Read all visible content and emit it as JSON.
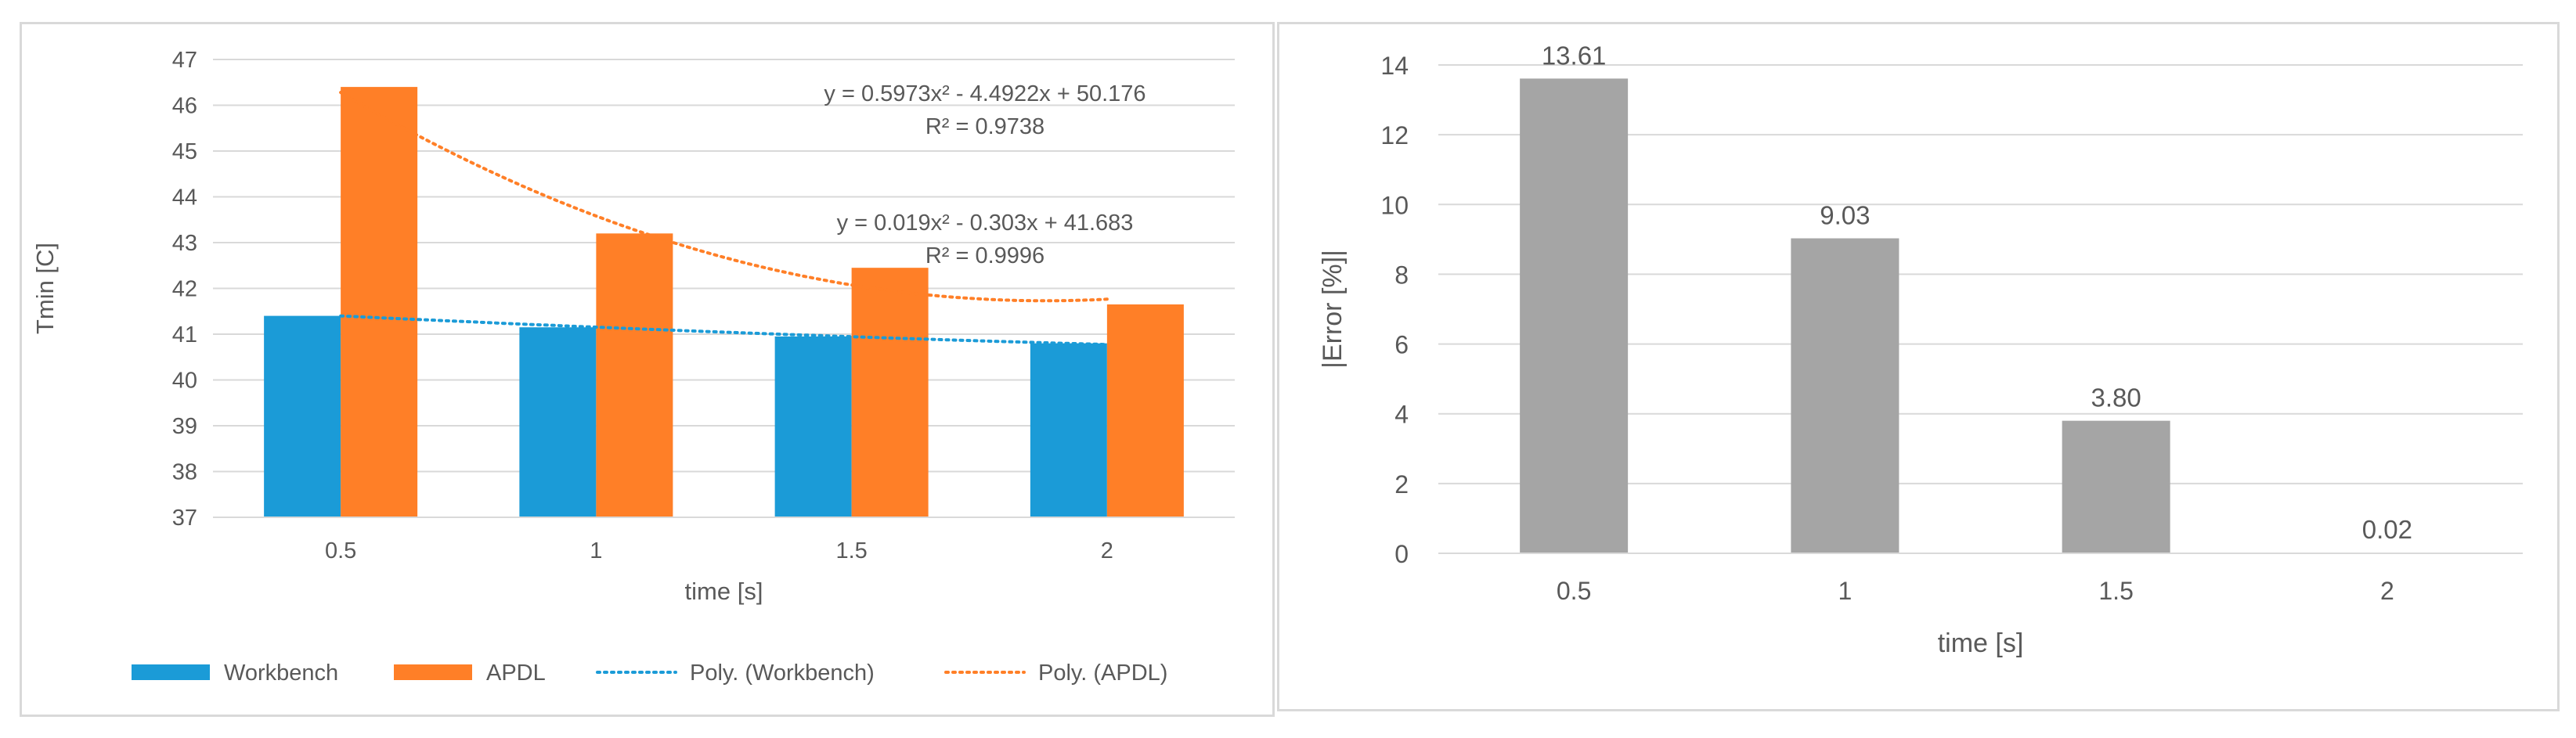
{
  "chart_data": [
    {
      "type": "bar",
      "title": "",
      "xlabel": "time [s]",
      "ylabel": "Tmin [C]",
      "ylim": [
        37,
        47
      ],
      "yticks": [
        37,
        38,
        39,
        40,
        41,
        42,
        43,
        44,
        45,
        46,
        47
      ],
      "categories": [
        "0.5",
        "1",
        "1.5",
        "2"
      ],
      "series": [
        {
          "name": "Workbench",
          "color": "#1b9bd7",
          "values": [
            41.4,
            41.15,
            40.95,
            40.8
          ]
        },
        {
          "name": "APDL",
          "color": "#ff7f27",
          "values": [
            46.4,
            43.2,
            42.45,
            41.65
          ]
        }
      ],
      "trendlines": [
        {
          "name": "Poly. (Workbench)",
          "series": "Workbench",
          "color": "#1b9bd7",
          "equation": "y = 0.019x² - 0.303x + 41.683",
          "r2": "R² = 0.9996",
          "coefficients": [
            0.019,
            -0.303,
            41.683
          ]
        },
        {
          "name": "Poly. (APDL)",
          "series": "APDL",
          "color": "#ff7f27",
          "equation": "y = 0.5973x² - 4.4922x + 50.176",
          "r2": "R² = 0.9738",
          "coefficients": [
            0.5973,
            -4.4922,
            50.176
          ]
        }
      ],
      "legend": {
        "position": "bottom",
        "entries": [
          {
            "label": "Workbench",
            "kind": "bar",
            "color": "#1b9bd7"
          },
          {
            "label": "APDL",
            "kind": "bar",
            "color": "#ff7f27"
          },
          {
            "label": "Poly. (Workbench)",
            "kind": "dotted",
            "color": "#1b9bd7"
          },
          {
            "label": "Poly. (APDL)",
            "kind": "dotted",
            "color": "#ff7f27"
          }
        ]
      },
      "grid": true
    },
    {
      "type": "bar",
      "title": "",
      "xlabel": "time [s]",
      "ylabel": "|Error [%]|",
      "ylim": [
        0,
        14
      ],
      "yticks": [
        0,
        2,
        4,
        6,
        8,
        10,
        12,
        14
      ],
      "categories": [
        "0.5",
        "1",
        "1.5",
        "2"
      ],
      "series": [
        {
          "name": "Error",
          "color": "#a5a5a5",
          "values": [
            13.61,
            9.03,
            3.8,
            0.02
          ],
          "labels": [
            "13.61",
            "9.03",
            "3.80",
            "0.02"
          ]
        }
      ],
      "grid": true
    }
  ]
}
